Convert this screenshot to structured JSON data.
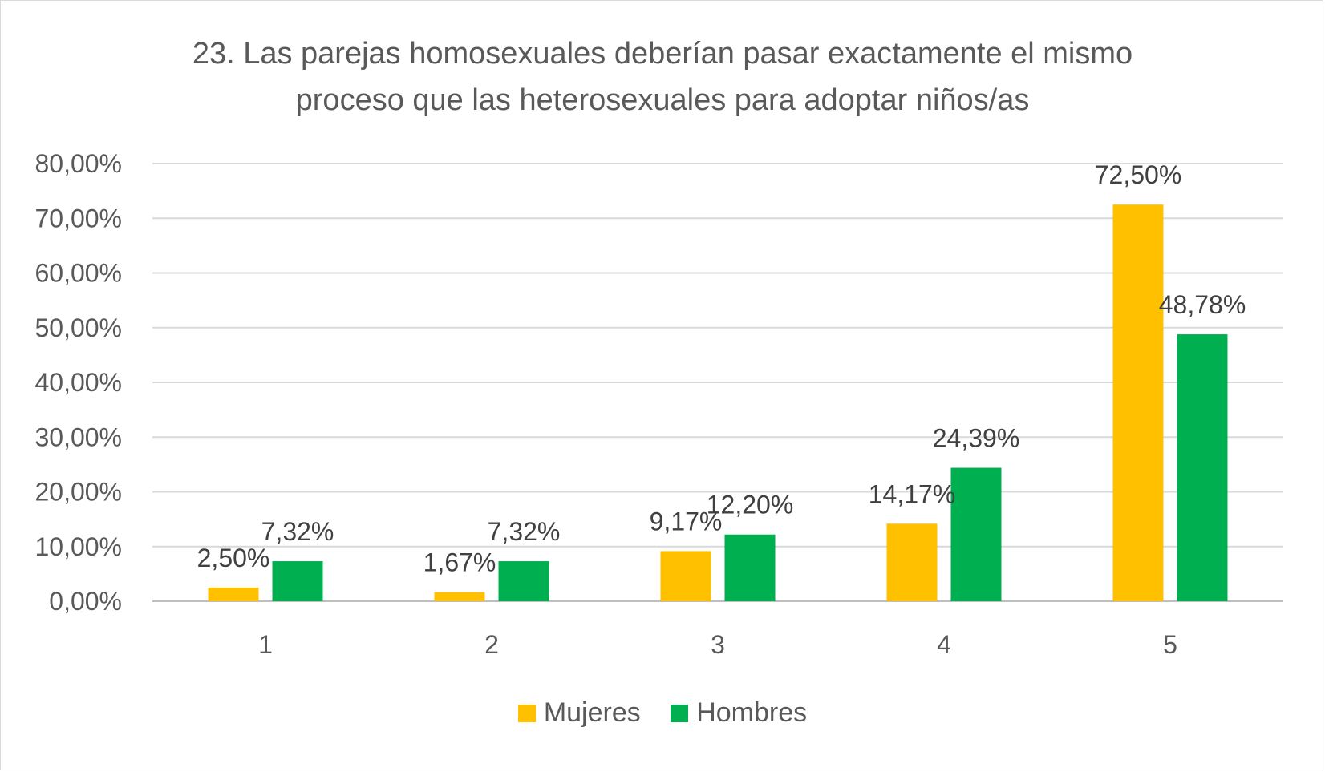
{
  "chart_data": {
    "type": "bar",
    "title_lines": [
      "23. Las parejas homosexuales deberían pasar exactamente el mismo",
      "proceso que las heterosexuales para adoptar niños/as"
    ],
    "categories": [
      "1",
      "2",
      "3",
      "4",
      "5"
    ],
    "series": [
      {
        "name": "Mujeres",
        "color": "#FFC000",
        "values": [
          2.5,
          1.67,
          9.17,
          14.17,
          72.5
        ],
        "labels": [
          "2,50%",
          "1,67%",
          "9,17%",
          "14,17%",
          "72,50%"
        ]
      },
      {
        "name": "Hombres",
        "color": "#00B050",
        "values": [
          7.32,
          7.32,
          12.2,
          24.39,
          48.78
        ],
        "labels": [
          "7,32%",
          "7,32%",
          "12,20%",
          "24,39%",
          "48,78%"
        ]
      }
    ],
    "y_ticks": [
      0,
      10,
      20,
      30,
      40,
      50,
      60,
      70,
      80
    ],
    "y_tick_labels": [
      "0,00%",
      "10,00%",
      "20,00%",
      "30,00%",
      "40,00%",
      "50,00%",
      "60,00%",
      "70,00%",
      "80,00%"
    ],
    "ylim": [
      0,
      80
    ],
    "xlabel": "",
    "ylabel": "",
    "grid": true,
    "legend_position": "bottom"
  },
  "colors": {
    "gridline": "#d9d9d9",
    "axis": "#bfbfbf"
  }
}
